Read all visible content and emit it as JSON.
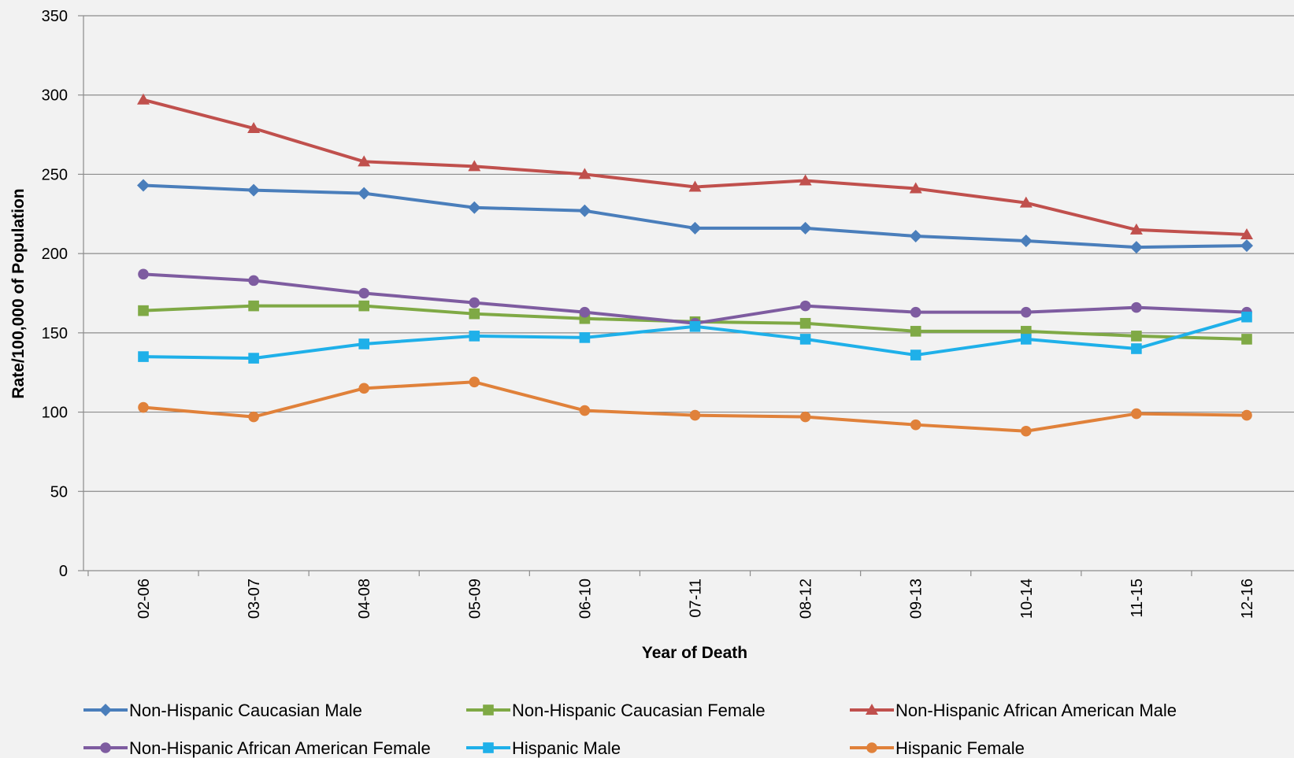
{
  "chart_data": {
    "type": "line",
    "title": "",
    "xlabel": "Year of Death",
    "ylabel": "Rate/100,000 of Population",
    "ylim": [
      0,
      350
    ],
    "yticks": [
      0,
      50,
      100,
      150,
      200,
      250,
      300,
      350
    ],
    "grid": true,
    "legend_position": "bottom",
    "categories": [
      "02-06",
      "03-07",
      "04-08",
      "05-09",
      "06-10",
      "07-11",
      "08-12",
      "09-13",
      "10-14",
      "11-15",
      "12-16"
    ],
    "series": [
      {
        "name": "Non-Hispanic Caucasian Male",
        "color": "#4a7ebb",
        "marker": "diamond",
        "values": [
          243,
          240,
          238,
          229,
          227,
          216,
          216,
          211,
          208,
          204,
          205
        ]
      },
      {
        "name": "Non-Hispanic Caucasian Female",
        "color": "#7fa945",
        "marker": "square",
        "values": [
          164,
          167,
          167,
          162,
          159,
          157,
          156,
          151,
          151,
          148,
          146
        ]
      },
      {
        "name": "Non-Hispanic African American Male",
        "color": "#c0504d",
        "marker": "triangle",
        "values": [
          297,
          279,
          258,
          255,
          250,
          242,
          246,
          241,
          232,
          215,
          212
        ]
      },
      {
        "name": "Non-Hispanic African American Female",
        "color": "#7e5ca0",
        "marker": "circle",
        "values": [
          187,
          183,
          175,
          169,
          163,
          156,
          167,
          163,
          163,
          166,
          163
        ]
      },
      {
        "name": "Hispanic Male",
        "color": "#1fb0e9",
        "marker": "square",
        "values": [
          135,
          134,
          143,
          148,
          147,
          154,
          146,
          136,
          146,
          140,
          160
        ]
      },
      {
        "name": "Hispanic Female",
        "color": "#e0813a",
        "marker": "circle",
        "values": [
          103,
          97,
          115,
          119,
          101,
          98,
          97,
          92,
          88,
          99,
          98
        ]
      }
    ]
  }
}
